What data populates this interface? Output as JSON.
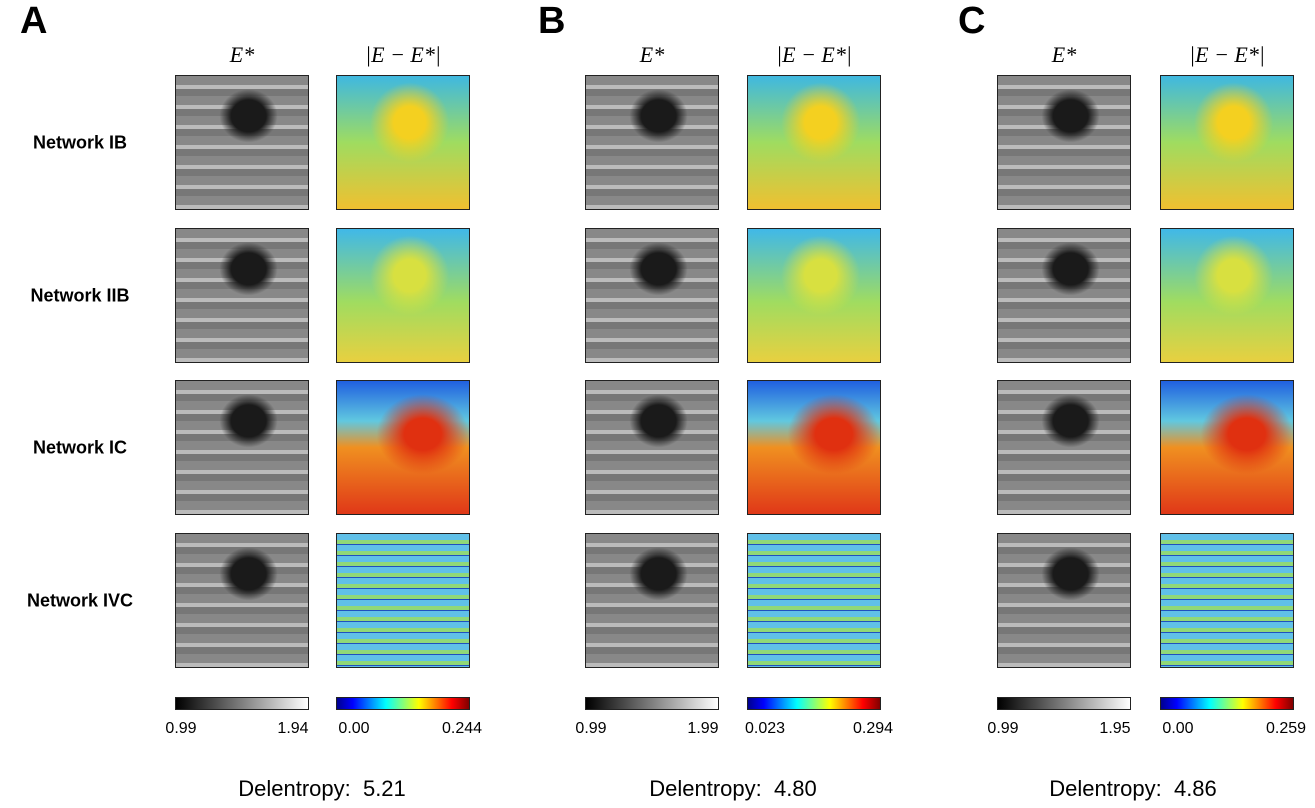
{
  "row_labels": [
    "Network IB",
    "Network IIB",
    "Network IC",
    "Network IVC"
  ],
  "panels": [
    {
      "label": "A",
      "headers": [
        "E*",
        "|E − E*|"
      ],
      "gray_bar": [
        "0.99",
        "1.94"
      ],
      "heat_bar": [
        "0.00",
        "0.244"
      ],
      "delentropy": "Delentropy:  5.21"
    },
    {
      "label": "B",
      "headers": [
        "E*",
        "|E − E*|"
      ],
      "gray_bar": [
        "0.99",
        "1.99"
      ],
      "heat_bar": [
        "0.023",
        "0.294"
      ],
      "delentropy": "Delentropy:  4.80"
    },
    {
      "label": "C",
      "headers": [
        "E*",
        "|E − E*|"
      ],
      "gray_bar": [
        "0.99",
        "1.95"
      ],
      "heat_bar": [
        "0.00",
        "0.259"
      ],
      "delentropy": "Delentropy:  4.86"
    }
  ]
}
